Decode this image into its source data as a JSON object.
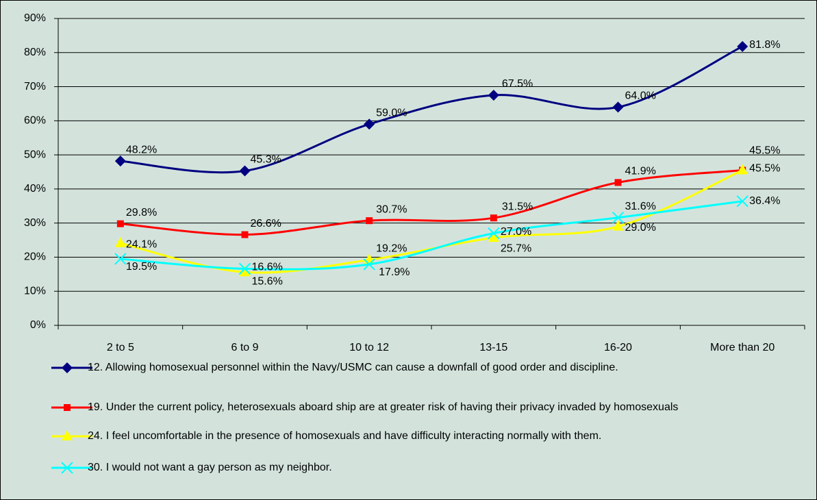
{
  "chart_data": {
    "type": "line",
    "categories": [
      "2 to 5",
      "6 to 9",
      "10 to 12",
      "13-15",
      "16-20",
      "More than 20"
    ],
    "ylim": [
      0,
      90
    ],
    "yticks": [
      {
        "value": 0,
        "label": "0%"
      },
      {
        "value": 10,
        "label": "10%"
      },
      {
        "value": 20,
        "label": "20%"
      },
      {
        "value": 30,
        "label": "30%"
      },
      {
        "value": 40,
        "label": "40%"
      },
      {
        "value": 50,
        "label": "50%"
      },
      {
        "value": 60,
        "label": "60%"
      },
      {
        "value": 70,
        "label": "70%"
      },
      {
        "value": 80,
        "label": "80%"
      },
      {
        "value": 90,
        "label": "90%"
      }
    ],
    "grid": true,
    "series": [
      {
        "name": "12. Allowing homosexual personnel within the Navy/USMC can cause a downfall of good order and discipline.",
        "color": "#000080",
        "marker": "diamond",
        "values": [
          48.2,
          45.3,
          59.0,
          67.5,
          64.0,
          81.8
        ],
        "value_labels": [
          "48.2%",
          "45.3%",
          "59.0%",
          "67.5%",
          "64.0%",
          "81.8%"
        ]
      },
      {
        "name": "19. Under the current policy, heterosexuals aboard ship are at greater risk of having their privacy invaded by homosexuals",
        "color": "#ff0000",
        "marker": "square",
        "values": [
          29.8,
          26.6,
          30.7,
          31.5,
          41.9,
          45.5
        ],
        "value_labels": [
          "29.8%",
          "26.6%",
          "30.7%",
          "31.5%",
          "41.9%",
          "45.5%"
        ]
      },
      {
        "name": "24. I feel uncomfortable in the presence of homosexuals and have difficulty interacting normally with them.",
        "color": "#ffff00",
        "marker": "triangle",
        "values": [
          24.1,
          15.6,
          19.2,
          25.7,
          29.0,
          45.5
        ],
        "value_labels": [
          "24.1%",
          "15.6%",
          "19.2%",
          "25.7%",
          "29.0%",
          "45.5%"
        ]
      },
      {
        "name": "30. I would not want a gay person as my neighbor.",
        "color": "#00ffff",
        "marker": "x",
        "values": [
          19.5,
          16.6,
          17.9,
          27.0,
          31.6,
          36.4
        ],
        "value_labels": [
          "19.5%",
          "16.6%",
          "17.9%",
          "27.0%",
          "31.6%",
          "36.4%"
        ]
      }
    ]
  }
}
